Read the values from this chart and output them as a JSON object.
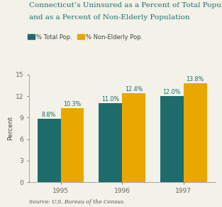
{
  "title_line1": "Connecticut’s Uninsured as a Percent of Total Population",
  "title_line2": "and as a Percent of Non-Elderly Population",
  "years": [
    "1995",
    "1996",
    "1997"
  ],
  "total_pop": [
    8.8,
    11.0,
    12.0
  ],
  "non_elderly_pop": [
    10.3,
    12.4,
    13.8
  ],
  "total_pop_labels": [
    "8.8%",
    "11.0%",
    "12.0%"
  ],
  "non_elderly_labels": [
    "10.3%",
    "12.4%",
    "13.8%"
  ],
  "color_total": "#1e6b6b",
  "color_non_elderly": "#e8a800",
  "ylabel": "Percent",
  "ylim": [
    0,
    15
  ],
  "yticks": [
    0,
    3,
    6,
    9,
    12,
    15
  ],
  "legend_total": "% Total Pop.",
  "legend_non_elderly": "% Non-Elderly Pop.",
  "source": "Source: U.S. Bureau of the Census.",
  "bar_width": 0.38,
  "title_fontsize": 7.5,
  "label_fontsize": 5.8,
  "tick_fontsize": 6.5,
  "ylabel_fontsize": 6.5,
  "legend_fontsize": 6.0,
  "source_fontsize": 5.5,
  "background_color": "#f2f2e8",
  "title_color": "#1e6b6b",
  "label_color": "#1e6b6b"
}
